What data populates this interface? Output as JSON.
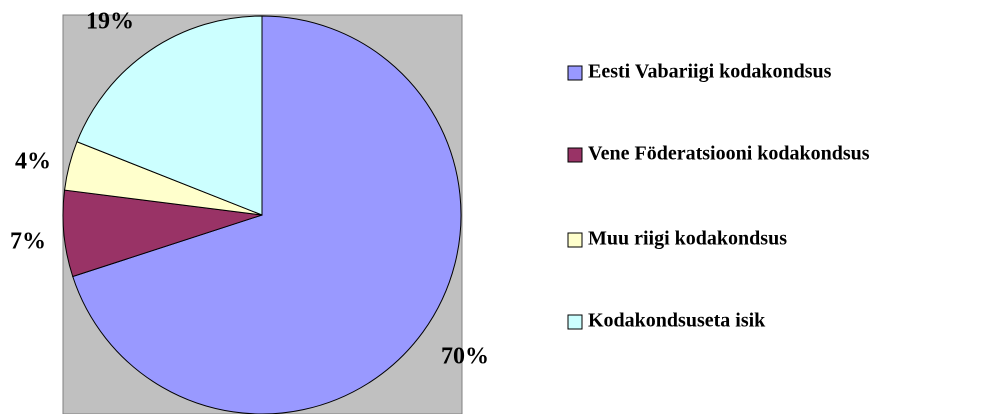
{
  "chart_data": {
    "type": "pie",
    "categories": [
      "Eesti Vabariigi kodakondsus",
      "Vene Föderatsiooni kodakondsus",
      "Muu riigi kodakondsus",
      "Kodakondsuseta isik"
    ],
    "values": [
      70,
      7,
      4,
      19
    ],
    "value_labels": [
      "70%",
      "7%",
      "4%",
      "19%"
    ],
    "colors": [
      "#9999ff",
      "#993366",
      "#ffffcc",
      "#ccffff"
    ],
    "legend": "right"
  }
}
